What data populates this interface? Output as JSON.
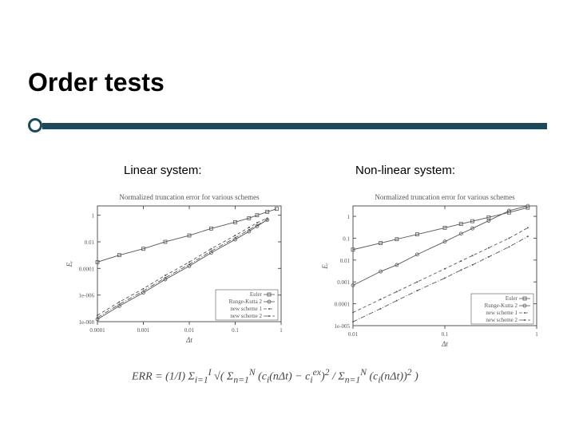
{
  "title": "Order tests",
  "subtitles": {
    "left": "Linear system:",
    "right": "Non-linear system:"
  },
  "formula_html": "ERR = (1/I) &Sigma;<sub>i=1</sub><sup>I</sup> &radic;( &Sigma;<sub>n=1</sub><sup>N</sup> (c<sub>i</sub>(n&Delta;t) &minus; c<sub>i</sub><sup>ex</sup>)<sup>2</sup> / &Sigma;<sub>n=1</sub><sup>N</sup> (c<sub>i</sub>(n&Delta;t))<sup>2</sup> )",
  "colors": {
    "accent": "#1b4a5f",
    "text": "#000000",
    "chart_ink": "#555555",
    "chart_light": "#aaaaaa",
    "background": "#ffffff"
  },
  "chart_left": {
    "title": "Normalized truncation error for various schemes",
    "title_fontsize": 9,
    "xlabel": "Δt",
    "ylabel": "Eᵣ",
    "label_fontsize": 9,
    "x_log": true,
    "y_log": true,
    "x_ticks": [
      0.0001,
      0.001,
      0.01,
      0.1,
      1
    ],
    "x_tick_labels": [
      "0.0001",
      "0.001",
      "0.01",
      "0.1",
      "1"
    ],
    "y_ticks": [
      1e-08,
      1e-06,
      0.0001,
      0.01,
      1
    ],
    "y_tick_labels": [
      "1e-008",
      "1e-006",
      "0.0001",
      "0.01",
      "1"
    ],
    "xlim": [
      0.0001,
      1
    ],
    "ylim": [
      1e-08,
      5
    ],
    "plot_bg": "#ffffff",
    "frame_color": "#555555",
    "tick_fontsize": 7,
    "legend": {
      "position": "lower-right",
      "fontsize": 7,
      "items": [
        {
          "label": "Euler",
          "style": "solid",
          "marker": "square"
        },
        {
          "label": "Runge-Kutta 2",
          "style": "solid",
          "marker": "circle"
        },
        {
          "label": "new scheme 1",
          "style": "dash",
          "marker": "dot"
        },
        {
          "label": "new scheme 2",
          "style": "dashdot",
          "marker": "dot"
        }
      ]
    },
    "series": [
      {
        "name": "Euler",
        "style": "solid",
        "marker": "square",
        "color": "#555555",
        "x": [
          0.0001,
          0.0003,
          0.001,
          0.003,
          0.01,
          0.03,
          0.1,
          0.2,
          0.3,
          0.5,
          0.8
        ],
        "y": [
          0.0003,
          0.001,
          0.003,
          0.01,
          0.03,
          0.1,
          0.3,
          0.6,
          1.0,
          1.8,
          3.0
        ]
      },
      {
        "name": "Runge-Kutta 2",
        "style": "solid",
        "marker": "circle",
        "color": "#555555",
        "x": [
          0.0001,
          0.0003,
          0.001,
          0.003,
          0.01,
          0.03,
          0.1,
          0.2,
          0.3,
          0.5
        ],
        "y": [
          1.5e-08,
          1.5e-07,
          1.5e-06,
          1.5e-05,
          0.00015,
          0.0015,
          0.015,
          0.06,
          0.15,
          0.45
        ]
      },
      {
        "name": "new scheme 1",
        "style": "dash",
        "marker": "dot",
        "color": "#555555",
        "x": [
          0.0001,
          0.0003,
          0.001,
          0.003,
          0.01,
          0.03,
          0.1,
          0.2,
          0.3,
          0.5
        ],
        "y": [
          3e-08,
          3e-07,
          3e-06,
          3e-05,
          0.0003,
          0.003,
          0.03,
          0.12,
          0.27,
          0.6
        ]
      },
      {
        "name": "new scheme 2",
        "style": "dashdot",
        "marker": "dot",
        "color": "#555555",
        "x": [
          0.0001,
          0.0003,
          0.001,
          0.003,
          0.01,
          0.03,
          0.1,
          0.2,
          0.3,
          0.5
        ],
        "y": [
          2e-08,
          2e-07,
          2e-06,
          2e-05,
          0.0002,
          0.002,
          0.02,
          0.08,
          0.18,
          0.45
        ]
      }
    ]
  },
  "chart_right": {
    "title": "Normalized truncation error for various schemes",
    "title_fontsize": 9,
    "xlabel": "Δt",
    "ylabel": "Eᵣ",
    "label_fontsize": 9,
    "x_log": true,
    "y_log": true,
    "x_ticks": [
      0.01,
      0.1,
      1
    ],
    "x_tick_labels": [
      "0.01",
      "0.1",
      "1"
    ],
    "y_ticks": [
      1e-05,
      0.0001,
      0.001,
      0.01,
      0.1,
      1
    ],
    "y_tick_labels": [
      "1e-005",
      "0.0001",
      "0.001",
      "0.01",
      "0.1",
      "1"
    ],
    "xlim": [
      0.01,
      1
    ],
    "ylim": [
      1e-05,
      3
    ],
    "plot_bg": "#ffffff",
    "frame_color": "#555555",
    "tick_fontsize": 7,
    "legend": {
      "position": "lower-right",
      "fontsize": 7,
      "items": [
        {
          "label": "Euler",
          "style": "solid",
          "marker": "square"
        },
        {
          "label": "Runge-Kutta 2",
          "style": "solid",
          "marker": "circle"
        },
        {
          "label": "new scheme 1",
          "style": "dash",
          "marker": "dot"
        },
        {
          "label": "new scheme 2",
          "style": "dashdot",
          "marker": "dot"
        }
      ]
    },
    "series": [
      {
        "name": "Euler",
        "style": "solid",
        "marker": "square",
        "color": "#555555",
        "x": [
          0.01,
          0.02,
          0.03,
          0.05,
          0.1,
          0.15,
          0.2,
          0.3,
          0.5,
          0.8
        ],
        "y": [
          0.03,
          0.06,
          0.09,
          0.15,
          0.3,
          0.45,
          0.6,
          0.9,
          1.5,
          2.5
        ]
      },
      {
        "name": "Runge-Kutta 2",
        "style": "solid",
        "marker": "circle",
        "color": "#555555",
        "x": [
          0.01,
          0.02,
          0.03,
          0.05,
          0.1,
          0.15,
          0.2,
          0.3,
          0.5,
          0.8
        ],
        "y": [
          0.0007,
          0.003,
          0.006,
          0.018,
          0.07,
          0.16,
          0.28,
          0.63,
          1.8,
          3.0
        ]
      },
      {
        "name": "new scheme 1",
        "style": "dash",
        "marker": "dot",
        "color": "#555555",
        "x": [
          0.01,
          0.02,
          0.03,
          0.05,
          0.1,
          0.15,
          0.2,
          0.3,
          0.5,
          0.8
        ],
        "y": [
          4e-05,
          0.00016,
          0.00036,
          0.001,
          0.004,
          0.009,
          0.016,
          0.036,
          0.1,
          0.3
        ]
      },
      {
        "name": "new scheme 2",
        "style": "dashdot",
        "marker": "dot",
        "color": "#555555",
        "x": [
          0.01,
          0.02,
          0.03,
          0.05,
          0.1,
          0.15,
          0.2,
          0.3,
          0.5,
          0.8
        ],
        "y": [
          1.5e-05,
          6e-05,
          0.00014,
          0.0004,
          0.0015,
          0.0035,
          0.006,
          0.014,
          0.04,
          0.12
        ]
      }
    ]
  }
}
